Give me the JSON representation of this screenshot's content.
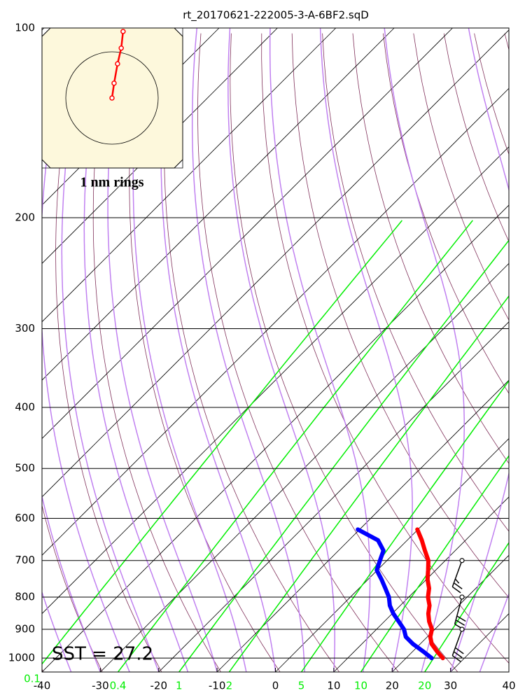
{
  "chart_data": {
    "type": "skew-t",
    "title": "rt_20170621-222005-3-A-6BF2.sqD",
    "xlim": [
      -40,
      40
    ],
    "xticks": [
      -40,
      -30,
      -20,
      -10,
      0,
      10,
      20,
      30,
      40
    ],
    "ylim": [
      1052,
      100
    ],
    "yticks": [
      100,
      200,
      300,
      400,
      500,
      600,
      700,
      800,
      900,
      1000
    ],
    "log_y": true,
    "mixing_ratio_lines": [
      0.1,
      0.4,
      1,
      2,
      5,
      10,
      20
    ],
    "pressure": [
      1000,
      975,
      950,
      925,
      900,
      875,
      850,
      825,
      800,
      775,
      750,
      725,
      700,
      675,
      650,
      625
    ],
    "temperature": {
      "color": "#ff0000",
      "values": [
        26.3,
        24.1,
        22.0,
        20.5,
        19.5,
        17.7,
        16.2,
        15.0,
        13.3,
        12.0,
        10.2,
        8.7,
        7.1,
        4.8,
        2.5,
        -0.1
      ]
    },
    "dewpoint": {
      "color": "#0000ff",
      "values": [
        24.4,
        21.7,
        18.8,
        16.3,
        14.7,
        12.5,
        10.2,
        8.2,
        6.6,
        4.5,
        2.3,
        -0.1,
        -1.2,
        -2.3,
        -5.0,
        -10.3
      ]
    },
    "winds": {
      "pressure": [
        700,
        800,
        900
      ],
      "direction": [
        200,
        195,
        200
      ],
      "speed": [
        25,
        30,
        30
      ]
    },
    "hodograph": {
      "label": "1 nm rings",
      "u": [
        0,
        0.045,
        0.12,
        0.2,
        0.24
      ],
      "v": [
        0,
        0.32,
        0.74,
        1.08,
        1.44
      ],
      "color": "#ff0000"
    },
    "annotation": "SST = 27.2"
  }
}
